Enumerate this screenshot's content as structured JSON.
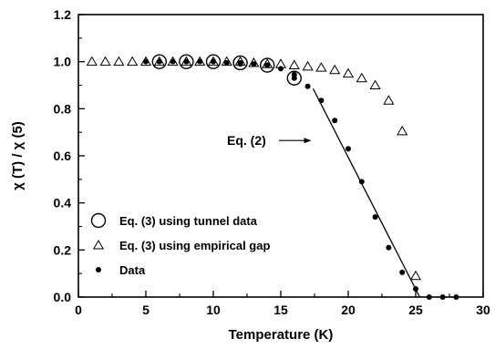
{
  "chart_data": {
    "type": "scatter",
    "xlabel": "Temperature (K)",
    "ylabel": "χ (T) / χ (5)",
    "xlim": [
      0,
      30
    ],
    "ylim": [
      0.0,
      1.2
    ],
    "x_ticks": [
      "0",
      "5",
      "10",
      "15",
      "20",
      "25",
      "30"
    ],
    "y_ticks": [
      "0.0",
      "0.2",
      "0.4",
      "0.6",
      "0.8",
      "1.0",
      "1.2"
    ],
    "legend_position": "bottom-left",
    "series": [
      {
        "name": "Eq. (3) using tunnel data",
        "marker": "open-circle",
        "x": [
          6,
          8,
          10,
          12,
          14,
          16
        ],
        "y": [
          1.0,
          1.0,
          1.0,
          0.995,
          0.985,
          0.93
        ]
      },
      {
        "name": "Eq. (3) using empirical gap",
        "marker": "open-triangle",
        "x": [
          1,
          2,
          3,
          4,
          5,
          6,
          7,
          8,
          9,
          10,
          11,
          12,
          13,
          14,
          15,
          16,
          17,
          18,
          19,
          20,
          21,
          22,
          23,
          24,
          25
        ],
        "y": [
          1.0,
          1.0,
          1.0,
          1.0,
          1.0,
          1.0,
          1.0,
          1.0,
          1.0,
          1.0,
          1.0,
          1.0,
          0.995,
          0.99,
          0.99,
          0.985,
          0.98,
          0.975,
          0.965,
          0.95,
          0.93,
          0.9,
          0.835,
          0.705,
          0.09
        ]
      },
      {
        "name": "Data",
        "marker": "filled-circle",
        "x": [
          5,
          6,
          7,
          8,
          9,
          10,
          11,
          12,
          13,
          14,
          15,
          16,
          17,
          18,
          19,
          20,
          21,
          22,
          23,
          24,
          25,
          26,
          27,
          28
        ],
        "y": [
          1.0,
          1.0,
          1.0,
          1.0,
          1.0,
          1.0,
          0.995,
          0.99,
          0.99,
          0.985,
          0.97,
          0.945,
          0.895,
          0.835,
          0.75,
          0.63,
          0.49,
          0.34,
          0.21,
          0.105,
          0.035,
          0.0,
          0.0,
          0.0
        ]
      },
      {
        "name": "Eq. (2)",
        "marker": "line",
        "x": [
          17.4,
          25.3
        ],
        "y": [
          0.885,
          0.0
        ]
      }
    ],
    "annotations": [
      {
        "text": "Eq. (2)",
        "arrow_to": [
          17.4,
          0.665
        ]
      }
    ]
  }
}
